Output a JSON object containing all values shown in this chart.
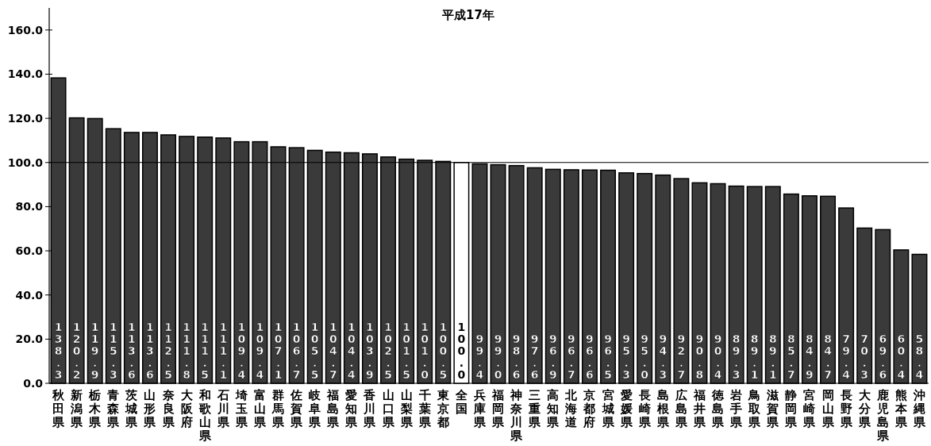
{
  "chart_data": {
    "type": "bar",
    "title": "平成17年",
    "categories": [
      "秋田県",
      "新潟県",
      "栃木県",
      "青森県",
      "茨城県",
      "山形県",
      "奈良県",
      "大阪府",
      "和歌山県",
      "石川県",
      "埼玉県",
      "富山県",
      "群馬県",
      "佐賀県",
      "岐阜県",
      "福島県",
      "愛知県",
      "香川県",
      "山口県",
      "山梨県",
      "千葉県",
      "東京都",
      "全国",
      "兵庫県",
      "福岡県",
      "神奈川県",
      "三重県",
      "高知県",
      "北海道",
      "京都府",
      "宮城県",
      "愛媛県",
      "長崎県",
      "島根県",
      "広島県",
      "福井県",
      "徳島県",
      "岩手県",
      "鳥取県",
      "滋賀県",
      "静岡県",
      "宮崎県",
      "岡山県",
      "長野県",
      "大分県",
      "鹿児島県",
      "熊本県",
      "沖縄県"
    ],
    "values": [
      138.3,
      120.2,
      119.9,
      115.3,
      113.6,
      113.6,
      112.5,
      111.8,
      111.5,
      111.1,
      109.4,
      109.4,
      107.1,
      106.7,
      105.5,
      104.7,
      104.4,
      103.9,
      102.5,
      101.5,
      101.0,
      100.5,
      100.0,
      99.4,
      99.0,
      98.6,
      97.6,
      96.9,
      96.7,
      96.6,
      96.5,
      95.3,
      95.0,
      94.3,
      92.7,
      90.8,
      90.4,
      89.3,
      89.1,
      89.1,
      85.7,
      84.9,
      84.7,
      79.4,
      70.3,
      69.6,
      60.4,
      58.4
    ],
    "value_labels": [
      "138.3",
      "120.2",
      "119.9",
      "115.3",
      "113.6",
      "113.6",
      "112.5",
      "111.8",
      "111.5",
      "111.1",
      "109.4",
      "109.4",
      "107.1",
      "106.7",
      "105.5",
      "104.7",
      "104.4",
      "103.9",
      "102.5",
      "101.5",
      "101.0",
      "100.5",
      "100.0",
      "99.4",
      "99.0",
      "98.6",
      "97.6",
      "96.9",
      "96.7",
      "96.6",
      "96.5",
      "95.3",
      "95.0",
      "94.3",
      "92.7",
      "90.8",
      "90.4",
      "89.3",
      "89.1",
      "89.1",
      "85.7",
      "84.9",
      "84.7",
      "79.4",
      "70.3",
      "69.6",
      "60.4",
      "58.4"
    ],
    "colors": [
      "#3a3a3a",
      "#3a3a3a",
      "#3a3a3a",
      "#3a3a3a",
      "#3a3a3a",
      "#3a3a3a",
      "#3a3a3a",
      "#3a3a3a",
      "#3a3a3a",
      "#3a3a3a",
      "#3a3a3a",
      "#3a3a3a",
      "#3a3a3a",
      "#3a3a3a",
      "#3a3a3a",
      "#3a3a3a",
      "#3a3a3a",
      "#3a3a3a",
      "#3a3a3a",
      "#3a3a3a",
      "#3a3a3a",
      "#3a3a3a",
      "#ffffff",
      "#3a3a3a",
      "#3a3a3a",
      "#3a3a3a",
      "#3a3a3a",
      "#3a3a3a",
      "#3a3a3a",
      "#3a3a3a",
      "#3a3a3a",
      "#3a3a3a",
      "#3a3a3a",
      "#3a3a3a",
      "#3a3a3a",
      "#3a3a3a",
      "#3a3a3a",
      "#3a3a3a",
      "#3a3a3a",
      "#3a3a3a",
      "#3a3a3a",
      "#3a3a3a",
      "#3a3a3a",
      "#3a3a3a",
      "#3a3a3a",
      "#3a3a3a",
      "#3a3a3a",
      "#3a3a3a"
    ],
    "ylim": [
      0,
      170
    ],
    "yticks": [
      {
        "value": 0,
        "label": "0.0"
      },
      {
        "value": 20,
        "label": "20.0"
      },
      {
        "value": 40,
        "label": "40.0"
      },
      {
        "value": 60,
        "label": "60.0"
      },
      {
        "value": 80,
        "label": "80.0"
      },
      {
        "value": 100,
        "label": "100.0"
      },
      {
        "value": 120,
        "label": "120.0"
      },
      {
        "value": 140,
        "label": "140.0"
      },
      {
        "value": 160,
        "label": "160.0"
      }
    ],
    "ref_lines": [
      {
        "axis": "y",
        "value": 100,
        "color": "#000000"
      }
    ]
  }
}
